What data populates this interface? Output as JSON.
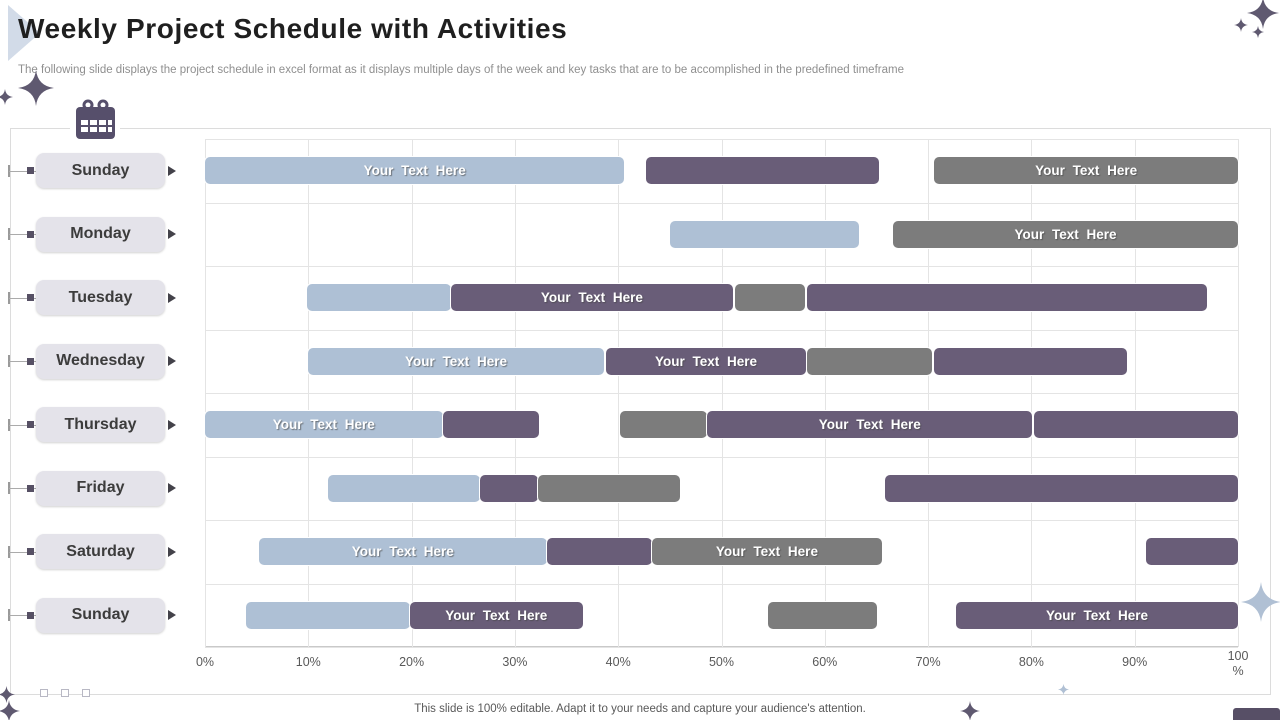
{
  "slide": {
    "title": "Weekly Project Schedule with Activities",
    "subtitle": "The following slide displays the project schedule in excel format as it displays multiple days of the week and key tasks that are to be accomplished in the predefined timeframe",
    "footer_note": "This slide is 100% editable. Adapt it to your needs and capture your audience's attention."
  },
  "colors": {
    "bar_blue": "#aec0d5",
    "bar_purple": "#695d78",
    "bar_gray": "#7c7c7c",
    "pill_bg": "#e4e3ea",
    "calendar_icon": "#564f6b",
    "sparkle_dark": "#5f5970",
    "sparkle_light": "#b0c0d4",
    "grid_line": "#e4e4e4",
    "axis_text": "#595959"
  },
  "icons": {
    "calendar": "calendar-grid-icon",
    "row_arrow": "right-pointing-triangle",
    "sparkle": "four-point-star"
  },
  "chart_data": {
    "type": "gantt",
    "title": "",
    "xlabel": "",
    "x_range": [
      0,
      100
    ],
    "unit": "percent-of-week-timeframe",
    "grid": true,
    "x_ticks": [
      "0%",
      "10%",
      "20%",
      "30%",
      "40%",
      "50%",
      "60%",
      "70%",
      "80%",
      "90%",
      "100\n%"
    ],
    "bar_label_default": "Your Text Here",
    "rows": [
      {
        "day": "Sunday",
        "bars": [
          {
            "start": 0,
            "end": 40.6,
            "color": "blue",
            "label": "Your Text Here"
          },
          {
            "start": 42.7,
            "end": 65.2,
            "color": "purple",
            "label": ""
          },
          {
            "start": 70.6,
            "end": 100,
            "color": "gray",
            "label": "Your Text Here"
          }
        ]
      },
      {
        "day": "Monday",
        "bars": [
          {
            "start": 45,
            "end": 63.3,
            "color": "blue",
            "label": ""
          },
          {
            "start": 66.6,
            "end": 100,
            "color": "gray",
            "label": "Your Text Here"
          }
        ]
      },
      {
        "day": "Tuesday",
        "bars": [
          {
            "start": 9.9,
            "end": 23.8,
            "color": "blue",
            "label": ""
          },
          {
            "start": 23.8,
            "end": 51.1,
            "color": "purple",
            "label": "Your Text Here"
          },
          {
            "start": 51.3,
            "end": 58.1,
            "color": "gray",
            "label": ""
          },
          {
            "start": 58.3,
            "end": 97,
            "color": "purple",
            "label": ""
          }
        ]
      },
      {
        "day": "Wednesday",
        "bars": [
          {
            "start": 10,
            "end": 38.6,
            "color": "blue",
            "label": "Your Text Here"
          },
          {
            "start": 38.8,
            "end": 58.2,
            "color": "purple",
            "label": "Your Text Here"
          },
          {
            "start": 58.3,
            "end": 70.4,
            "color": "gray",
            "label": ""
          },
          {
            "start": 70.6,
            "end": 89.3,
            "color": "purple",
            "label": ""
          }
        ]
      },
      {
        "day": "Thursday",
        "bars": [
          {
            "start": 0,
            "end": 23,
            "color": "blue",
            "label": "Your Text Here"
          },
          {
            "start": 23,
            "end": 32.3,
            "color": "purple",
            "label": ""
          },
          {
            "start": 40.2,
            "end": 48.6,
            "color": "gray",
            "label": ""
          },
          {
            "start": 48.6,
            "end": 80.1,
            "color": "purple",
            "label": "Your Text Here"
          },
          {
            "start": 80.3,
            "end": 100,
            "color": "purple",
            "label": ""
          }
        ]
      },
      {
        "day": "Friday",
        "bars": [
          {
            "start": 11.9,
            "end": 26.6,
            "color": "blue",
            "label": ""
          },
          {
            "start": 26.6,
            "end": 32.2,
            "color": "purple",
            "label": ""
          },
          {
            "start": 32.2,
            "end": 46,
            "color": "gray",
            "label": ""
          },
          {
            "start": 65.8,
            "end": 100,
            "color": "purple",
            "label": ""
          }
        ]
      },
      {
        "day": "Saturday",
        "bars": [
          {
            "start": 5.2,
            "end": 33.1,
            "color": "blue",
            "label": "Your Text Here"
          },
          {
            "start": 33.1,
            "end": 43.3,
            "color": "purple",
            "label": ""
          },
          {
            "start": 43.3,
            "end": 65.5,
            "color": "gray",
            "label": "Your Text Here"
          },
          {
            "start": 91.1,
            "end": 100,
            "color": "purple",
            "label": ""
          }
        ]
      },
      {
        "day": "Sunday",
        "bars": [
          {
            "start": 4,
            "end": 19.8,
            "color": "blue",
            "label": ""
          },
          {
            "start": 19.8,
            "end": 36.6,
            "color": "purple",
            "label": "Your Text Here"
          },
          {
            "start": 54.5,
            "end": 65.1,
            "color": "gray",
            "label": ""
          },
          {
            "start": 72.7,
            "end": 100,
            "color": "purple",
            "label": "Your Text Here"
          }
        ]
      }
    ]
  }
}
